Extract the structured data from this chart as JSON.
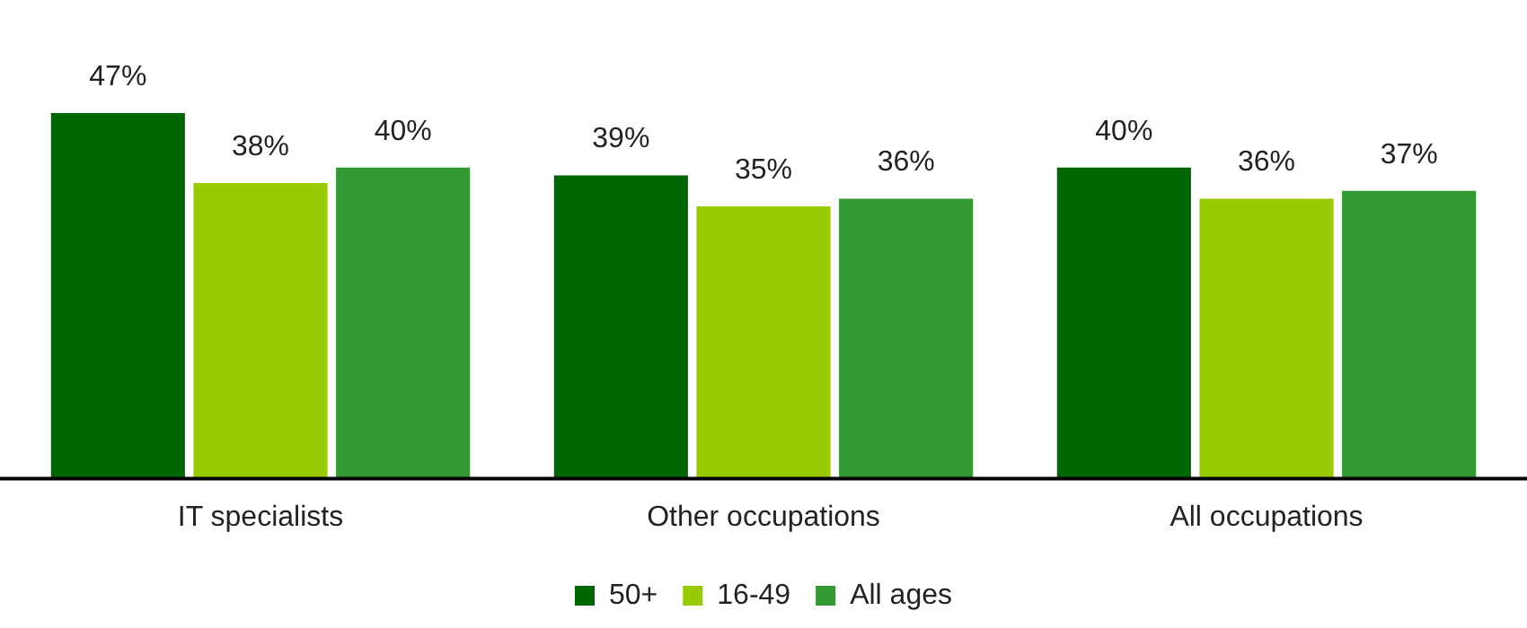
{
  "chart_data": {
    "type": "bar",
    "categories": [
      "IT specialists",
      "Other occupations",
      "All occupations"
    ],
    "series": [
      {
        "name": "50+",
        "color": "#006600",
        "values": [
          47,
          39,
          40
        ],
        "value_labels": [
          "47%",
          "39%",
          "40%"
        ]
      },
      {
        "name": "16-49",
        "color": "#99cc00",
        "values": [
          38,
          35,
          36
        ],
        "value_labels": [
          "38%",
          "35%",
          "36%"
        ]
      },
      {
        "name": "All ages",
        "color": "#339933",
        "values": [
          40,
          36,
          37
        ],
        "value_labels": [
          "40%",
          "36%",
          "37%"
        ]
      }
    ],
    "grid": false,
    "legend": "bottom",
    "tick_labels": "x"
  }
}
